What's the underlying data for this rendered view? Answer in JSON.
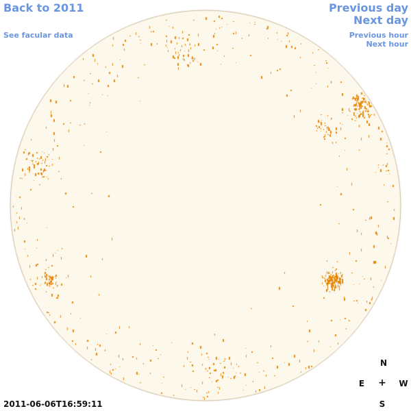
{
  "nav": {
    "back": "Back to 2011",
    "facular": "See facular data",
    "previous_day": "Previous day",
    "next_day": "Next day",
    "previous_hour": "Previous hour",
    "next_hour": "Next hour"
  },
  "compass": {
    "north": "N",
    "east": "E",
    "center": "+",
    "west": "W",
    "south": "S"
  },
  "timestamp": "2011-06-06T16:59:11",
  "colors": {
    "link": "#6a95e0",
    "disk_fill": "#fdf8ec",
    "disk_edge": "#c8b89a",
    "facula": "#e8880a"
  },
  "facula_clusters": [
    {
      "lat": 0.52,
      "lon": 0.8,
      "spread": 0.1,
      "count": 110
    },
    {
      "lat": 0.4,
      "lon": 0.62,
      "spread": 0.1,
      "count": 40
    },
    {
      "lat": -0.38,
      "lon": 0.65,
      "spread": 0.07,
      "count": 120
    },
    {
      "lat": 0.78,
      "lon": -0.1,
      "spread": 0.12,
      "count": 35
    },
    {
      "lat": -0.38,
      "lon": -0.8,
      "spread": 0.08,
      "count": 55
    },
    {
      "lat": 0.2,
      "lon": -0.85,
      "spread": 0.12,
      "count": 50
    },
    {
      "lat": -0.82,
      "lon": 0.05,
      "spread": 0.2,
      "count": 45
    }
  ]
}
